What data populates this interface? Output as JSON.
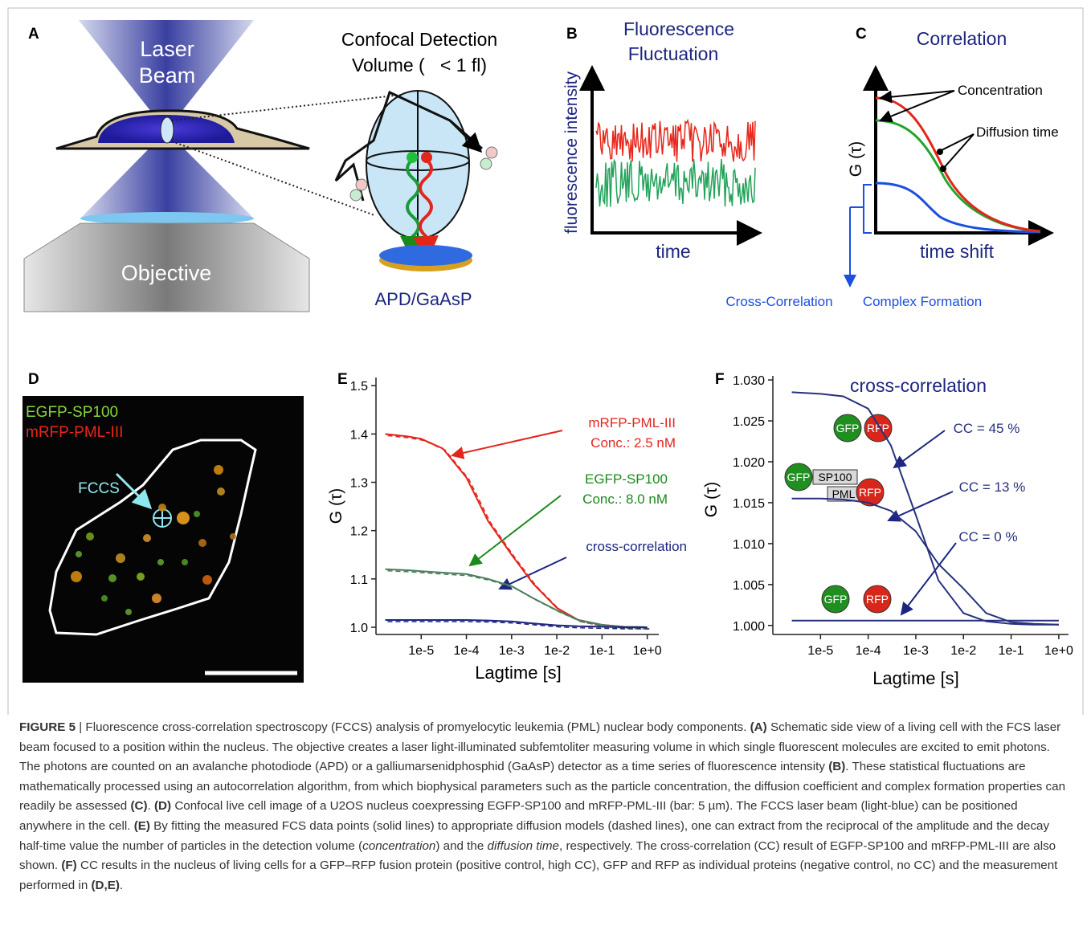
{
  "panel_a": {
    "letter": "A",
    "laser": "Laser",
    "beam": "Beam",
    "objective": "Objective",
    "detection_1": "Confocal Detection",
    "detection_2": "Volume (   < 1 fl)",
    "detector": "APD/GaAsP"
  },
  "panel_b": {
    "letter": "B",
    "title_1": "Fluorescence",
    "title_2": "Fluctuation",
    "y_label": "fluorescence intensity",
    "x_label": "time"
  },
  "panel_c": {
    "letter": "C",
    "title": "Correlation",
    "concentration": "Concentration",
    "diffusion_time": "Diffusion time",
    "y_label": "G (τ)",
    "x_label": "time shift",
    "cross_correlation": "Cross-Correlation",
    "complex_formation": "Complex Formation"
  },
  "panel_d": {
    "letter": "D",
    "green_label": "EGFP-SP100",
    "red_label": "mRFP-PML-III",
    "fccs": "FCCS"
  },
  "chart_data": [
    {
      "type": "line",
      "letter": "E",
      "y_label": "G (τ)",
      "x_label": "Lagtime [s]",
      "xscale": "log",
      "xlim": [
        1e-06,
        1.8
      ],
      "ylim": [
        0.985,
        1.517
      ],
      "xticks": [
        {
          "value": 1e-05,
          "label": "1e-5"
        },
        {
          "value": 0.0001,
          "label": "1e-4"
        },
        {
          "value": 0.001,
          "label": "1e-3"
        },
        {
          "value": 0.01,
          "label": "1e-2"
        },
        {
          "value": 0.1,
          "label": "1e-1"
        },
        {
          "value": 1,
          "label": "1e+0"
        }
      ],
      "yticks": [
        {
          "value": 1,
          "label": "1.0"
        },
        1.1,
        1.2,
        1.3,
        1.4,
        1.5
      ],
      "x": [
        1.6e-06,
        5e-06,
        1e-05,
        3e-05,
        0.0001,
        0.0003,
        0.001,
        0.003,
        0.01,
        0.03,
        0.1,
        0.3,
        1
      ],
      "series": [
        {
          "name": "mRFP-PML-III",
          "annotation": "Conc.: 2.5 nM",
          "color": "#e3261c",
          "values": [
            1.4,
            1.395,
            1.39,
            1.37,
            1.31,
            1.22,
            1.15,
            1.09,
            1.04,
            1.015,
            1.005,
            1.001,
            1.0
          ]
        },
        {
          "name": "EGFP-SP100",
          "annotation": "Conc.: 8.0 nM",
          "color": "#4c7d5c",
          "values": [
            1.12,
            1.118,
            1.116,
            1.113,
            1.11,
            1.1,
            1.085,
            1.06,
            1.035,
            1.015,
            1.005,
            1.001,
            1.0
          ]
        },
        {
          "name": "cross-correlation",
          "color": "#1c2580",
          "values": [
            1.015,
            1.015,
            1.015,
            1.015,
            1.015,
            1.014,
            1.012,
            1.008,
            1.004,
            1.002,
            1.001,
            1.0,
            1.0
          ]
        }
      ]
    },
    {
      "type": "line",
      "letter": "F",
      "title": "cross-correlation",
      "y_label": "G (τ)",
      "x_label": "Lagtime [s]",
      "xscale": "log",
      "xlim": [
        1e-06,
        1.6
      ],
      "ylim": [
        0.9989,
        1.0305
      ],
      "xticks": [
        {
          "value": 1e-05,
          "label": "1e-5"
        },
        {
          "value": 0.0001,
          "label": "1e-4"
        },
        {
          "value": 0.001,
          "label": "1e-3"
        },
        {
          "value": 0.01,
          "label": "1e-2"
        },
        {
          "value": 0.1,
          "label": "1e-1"
        },
        {
          "value": 1,
          "label": "1e+0"
        }
      ],
      "yticks": [
        {
          "value": 1,
          "label": "1.000"
        },
        {
          "value": 1.005,
          "label": "1.005"
        },
        {
          "value": 1.01,
          "label": "1.010"
        },
        {
          "value": 1.015,
          "label": "1.015"
        },
        {
          "value": 1.02,
          "label": "1.020"
        },
        {
          "value": 1.025,
          "label": "1.025"
        },
        {
          "value": 1.03,
          "label": "1.030"
        }
      ],
      "x": [
        2.5e-06,
        1e-05,
        3e-05,
        0.0001,
        0.0003,
        0.001,
        0.003,
        0.01,
        0.03,
        0.1,
        0.3,
        1
      ],
      "series": [
        {
          "name": "CC = 45 %",
          "color": "#27307e",
          "values": [
            1.0285,
            1.0283,
            1.028,
            1.0265,
            1.022,
            1.0135,
            1.0055,
            1.0015,
            1.0005,
            1.0002,
            1.0001,
            1.0001
          ]
        },
        {
          "name": "CC = 13 %",
          "color": "#27307e",
          "values": [
            1.0155,
            1.0155,
            1.0154,
            1.015,
            1.014,
            1.0115,
            1.0075,
            1.0045,
            1.0015,
            1.0004,
            1.0002,
            1.0001
          ]
        },
        {
          "name": "CC = 0 %",
          "color": "#27307e",
          "values": [
            1.0006,
            1.0006,
            1.0006,
            1.0006,
            1.0006,
            1.0006,
            1.0006,
            1.0006,
            1.0006,
            1.0006,
            1.0006,
            1.0006
          ]
        }
      ],
      "icons": {
        "gfp": "GFP",
        "rfp": "RFP",
        "sp100": "SP100",
        "pml": "PML"
      }
    }
  ],
  "caption": [
    {
      "text": "FIGURE 5",
      "style": "bold"
    },
    {
      "text": " | Fluorescence cross-correlation spectroscopy (FCCS) analysis of promyelocytic leukemia (PML) nuclear body components. "
    },
    {
      "text": "(A)",
      "style": "bold"
    },
    {
      "text": " Schematic side view of a living cell with the FCS laser beam focused to a position within the nucleus. The objective creates a laser light-illuminated subfemtoliter measuring volume in which single fluorescent molecules are excited to emit photons. The photons are counted on an avalanche photodiode (APD) or a galliumarsenidphosphid (GaAsP) detector as a time series of fluorescence intensity "
    },
    {
      "text": "(B)",
      "style": "bold"
    },
    {
      "text": ". These statistical fluctuations are mathematically processed using an autocorrelation algorithm, from which biophysical parameters such as the particle concentration, the diffusion coefficient and complex formation properties can readily be assessed "
    },
    {
      "text": "(C)",
      "style": "bold"
    },
    {
      "text": ". "
    },
    {
      "text": "(D)",
      "style": "bold"
    },
    {
      "text": " Confocal live cell image of a U2OS nucleus coexpressing EGFP-SP100 and mRFP-PML-III (bar: 5 µm). The FCCS laser beam (light-blue) can be positioned anywhere in the cell. "
    },
    {
      "text": "(E)",
      "style": "bold"
    },
    {
      "text": " By fitting the measured FCS data points (solid lines) to appropriate diffusion models (dashed lines), one can extract from the reciprocal of the amplitude and the decay half-time value the number of particles in the detection volume ("
    },
    {
      "text": "concentration",
      "style": "italic"
    },
    {
      "text": ") and the "
    },
    {
      "text": "diffusion time",
      "style": "italic"
    },
    {
      "text": ", respectively. The cross-correlation (CC) result of EGFP-SP100 and mRFP-PML-III are also shown. "
    },
    {
      "text": "(F)",
      "style": "bold"
    },
    {
      "text": " CC results in the nucleus of living cells for a GFP–RFP fusion protein (positive control, high CC), GFP and RFP as individual proteins (negative control, no CC) and the measurement performed in "
    },
    {
      "text": "(D,E)",
      "style": "bold"
    },
    {
      "text": "."
    }
  ]
}
